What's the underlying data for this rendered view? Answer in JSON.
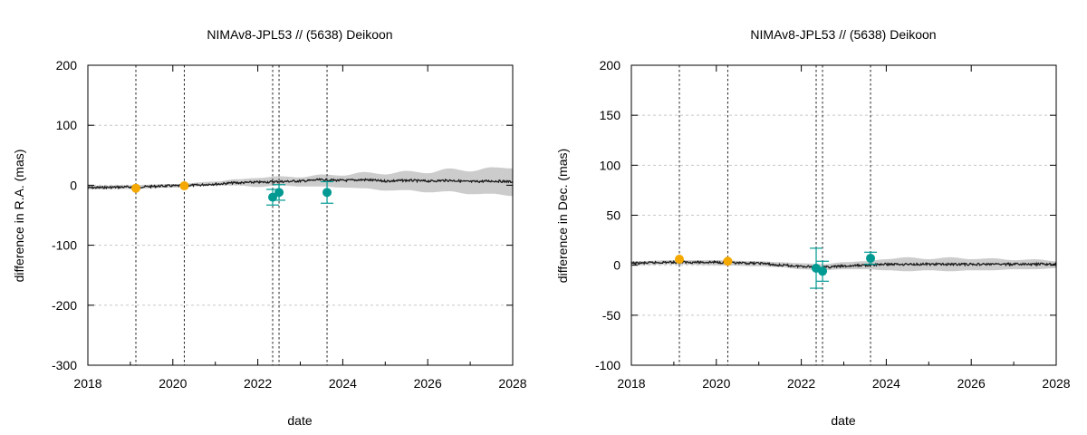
{
  "chart_data": [
    {
      "type": "line",
      "title": "NIMAv8-JPL53 // (5638) Deikoon",
      "xlabel": "date",
      "ylabel": "difference in R.A. (mas)",
      "xlim": [
        2018,
        2028
      ],
      "ylim": [
        -300,
        200
      ],
      "xticks": [
        2018,
        2020,
        2022,
        2024,
        2026,
        2028
      ],
      "yticks": [
        -300,
        -200,
        -100,
        0,
        100,
        200
      ],
      "grid": "horizontal dashed",
      "vlines": [
        2019.13,
        2020.27,
        2022.35,
        2022.5,
        2023.63
      ],
      "uncertainty_band": {
        "x": [
          2018.0,
          2019.0,
          2020.0,
          2021.0,
          2021.5,
          2022.0,
          2022.5,
          2023.0,
          2023.5,
          2024.0,
          2024.5,
          2025.0,
          2025.5,
          2026.0,
          2026.5,
          2027.0,
          2027.5,
          2028.0
        ],
        "upper": [
          -1,
          0,
          2,
          6,
          10,
          12,
          15,
          13,
          18,
          16,
          22,
          18,
          24,
          20,
          28,
          23,
          30,
          28
        ],
        "lower": [
          -7,
          -6,
          -4,
          0,
          0,
          -3,
          0,
          -2,
          -2,
          -4,
          -5,
          -9,
          -8,
          -12,
          -10,
          -15,
          -14,
          -18
        ]
      },
      "model_line": {
        "x": [
          2018.0,
          2019.0,
          2020.0,
          2020.5,
          2021.0,
          2021.5,
          2022.0,
          2022.5,
          2023.0,
          2023.5,
          2024.0,
          2024.5,
          2025.0,
          2025.5,
          2026.0,
          2026.5,
          2027.0,
          2027.5,
          2028.0
        ],
        "y": [
          -4,
          -3,
          -1,
          0,
          2,
          4,
          5,
          6,
          7,
          9,
          8,
          9,
          7,
          8,
          7,
          8,
          6,
          7,
          6
        ]
      },
      "series": [
        {
          "color": "#f5a800",
          "points": [
            {
              "x": 2019.13,
              "y": -5,
              "err": 0
            },
            {
              "x": 2020.27,
              "y": -1,
              "err": 0
            }
          ]
        },
        {
          "color": "#009a93",
          "points": [
            {
              "x": 2022.35,
              "y": -20,
              "err": 13
            },
            {
              "x": 2022.5,
              "y": -12,
              "err": 13
            },
            {
              "x": 2023.63,
              "y": -12,
              "err": 18
            }
          ]
        }
      ]
    },
    {
      "type": "line",
      "title": "NIMAv8-JPL53 // (5638) Deikoon",
      "xlabel": "date",
      "ylabel": "difference in Dec. (mas)",
      "xlim": [
        2018,
        2028
      ],
      "ylim": [
        -100,
        200
      ],
      "xticks": [
        2018,
        2020,
        2022,
        2024,
        2026,
        2028
      ],
      "yticks": [
        -100,
        -50,
        0,
        50,
        100,
        150,
        200
      ],
      "grid": "horizontal dashed",
      "vlines": [
        2019.13,
        2020.27,
        2022.35,
        2022.5,
        2023.63
      ],
      "uncertainty_band": {
        "x": [
          2018.0,
          2019.0,
          2020.0,
          2021.0,
          2021.5,
          2022.0,
          2022.5,
          2023.0,
          2023.5,
          2024.0,
          2024.5,
          2025.0,
          2025.5,
          2026.0,
          2026.5,
          2027.0,
          2027.5,
          2028.0
        ],
        "upper": [
          4,
          5,
          5,
          4,
          3,
          2,
          1,
          3,
          4,
          6,
          8,
          6,
          8,
          6,
          7,
          5,
          6,
          4
        ],
        "lower": [
          0,
          1,
          0,
          -1,
          -2,
          -4,
          -5,
          -4,
          -4,
          -5,
          -6,
          -5,
          -6,
          -5,
          -5,
          -4,
          -4,
          -3
        ]
      },
      "model_line": {
        "x": [
          2018.0,
          2019.0,
          2020.0,
          2020.5,
          2021.0,
          2021.5,
          2022.0,
          2022.5,
          2023.0,
          2023.5,
          2024.0,
          2024.5,
          2025.0,
          2025.5,
          2026.0,
          2026.5,
          2027.0,
          2027.5,
          2028.0
        ],
        "y": [
          2,
          3,
          3,
          2,
          2,
          0,
          -1,
          -2,
          -1,
          0,
          1,
          1,
          1,
          1,
          1,
          1,
          1,
          1,
          1
        ]
      },
      "series": [
        {
          "color": "#f5a800",
          "points": [
            {
              "x": 2019.13,
              "y": 6,
              "err": 0
            },
            {
              "x": 2020.27,
              "y": 4,
              "err": 0
            }
          ]
        },
        {
          "color": "#009a93",
          "points": [
            {
              "x": 2022.35,
              "y": -3,
              "err": 20
            },
            {
              "x": 2022.5,
              "y": -6,
              "err": 10
            },
            {
              "x": 2023.63,
              "y": 7,
              "err": 6
            }
          ]
        }
      ]
    }
  ]
}
